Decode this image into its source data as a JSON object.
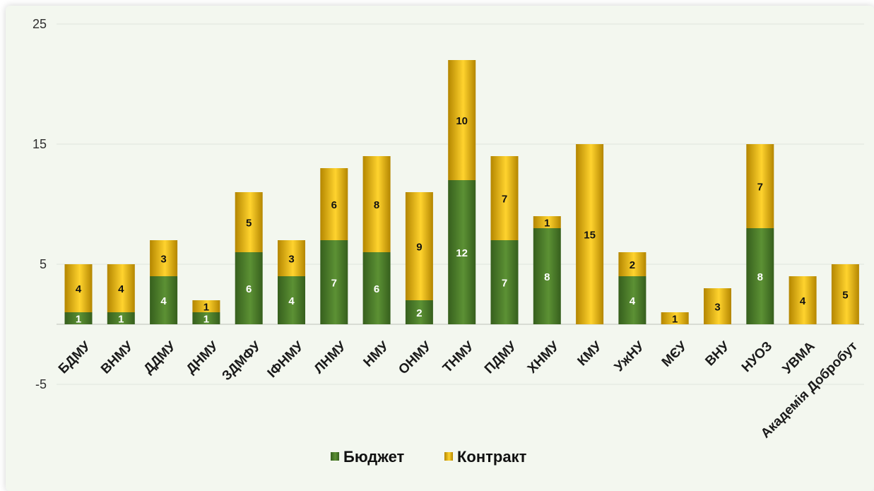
{
  "chart_data": {
    "type": "bar",
    "stacked": true,
    "title": "",
    "xlabel": "",
    "ylabel": "",
    "ylim": [
      -5,
      25
    ],
    "yticks": [
      -5,
      5,
      15,
      25
    ],
    "grid": true,
    "legend_position": "bottom",
    "categories": [
      "БДМУ",
      "ВНМУ",
      "ДДМУ",
      "ДНМУ",
      "ЗДМФУ",
      "ІФНМУ",
      "ЛНМУ",
      "НМУ",
      "ОНМУ",
      "ТНМУ",
      "ПДМУ",
      "ХНМУ",
      "КМУ",
      "УжНУ",
      "МЄУ",
      "ВНУ",
      "НУОЗ",
      "УВМА",
      "Академія Добробут"
    ],
    "series": [
      {
        "name": "Бюджет",
        "color": "#4a7a2c",
        "values": [
          1,
          1,
          4,
          1,
          6,
          4,
          7,
          6,
          2,
          12,
          7,
          8,
          null,
          4,
          null,
          null,
          8,
          null,
          null
        ]
      },
      {
        "name": "Контракт",
        "color": "#f5c211",
        "values": [
          4,
          4,
          3,
          1,
          5,
          3,
          6,
          8,
          9,
          10,
          7,
          1,
          15,
          2,
          1,
          3,
          7,
          4,
          5
        ]
      }
    ],
    "colors": {
      "budget_light": "#5c9134",
      "budget_dark": "#365f1d",
      "contract_light": "#ffd32e",
      "contract_dark": "#b48600",
      "grid": "#dfe5dc",
      "axis": "#c7cbc4",
      "panel_background": "#f3f7ef"
    }
  }
}
